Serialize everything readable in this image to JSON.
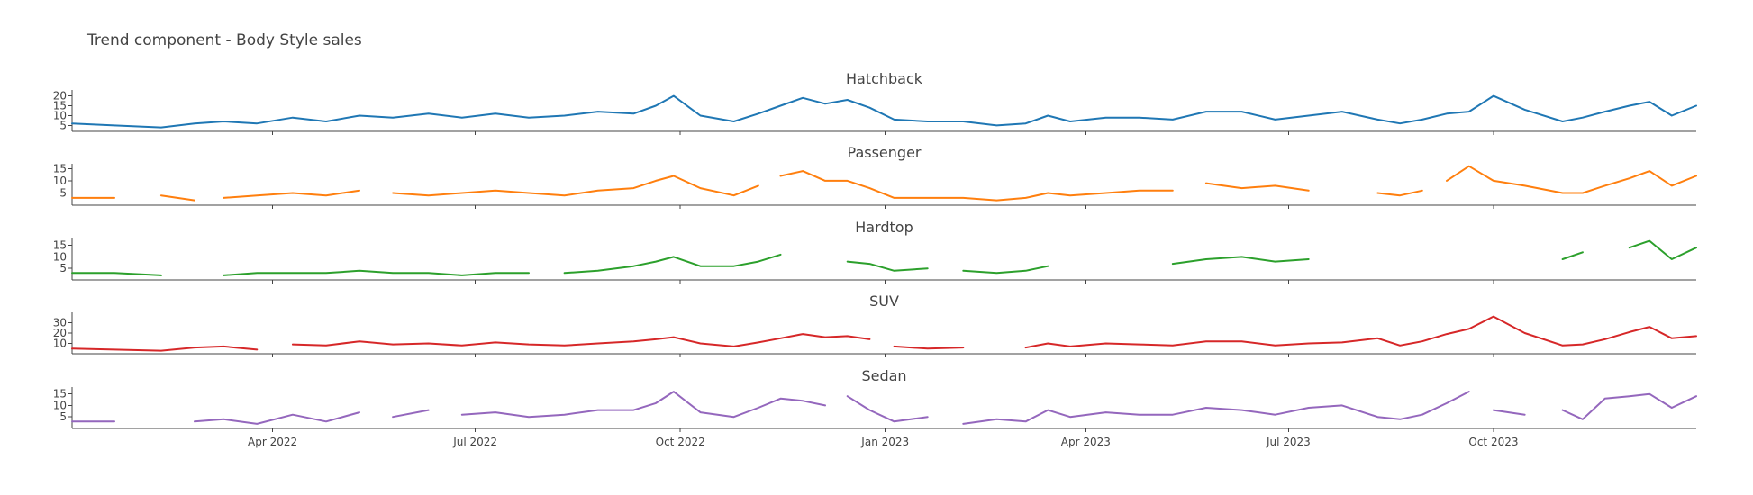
{
  "chart_data": {
    "type": "line",
    "title": "Trend component - Body Style sales",
    "x_range": [
      "2022-01-01",
      "2023-12-31"
    ],
    "x_ticks": [
      {
        "date": "2022-04-01",
        "label": "Apr 2022"
      },
      {
        "date": "2022-07-01",
        "label": "Jul 2022"
      },
      {
        "date": "2022-10-01",
        "label": "Oct 2022"
      },
      {
        "date": "2023-01-01",
        "label": "Jan 2023"
      },
      {
        "date": "2023-04-01",
        "label": "Apr 2023"
      },
      {
        "date": "2023-07-01",
        "label": "Jul 2023"
      },
      {
        "date": "2023-10-01",
        "label": "Oct 2023"
      }
    ],
    "grid": false,
    "legend": "none",
    "panels": [
      {
        "name": "Hatchback",
        "color": "#1f77b4",
        "ylim": [
          2,
          23
        ],
        "yticks": [
          5,
          10,
          15,
          20
        ],
        "x": [
          "2022-01-01",
          "2022-01-20",
          "2022-02-10",
          "2022-02-25",
          "2022-03-10",
          "2022-03-25",
          "2022-04-10",
          "2022-04-25",
          "2022-05-10",
          "2022-05-25",
          "2022-06-10",
          "2022-06-25",
          "2022-07-10",
          "2022-07-25",
          "2022-08-10",
          "2022-08-25",
          "2022-09-10",
          "2022-09-20",
          "2022-09-28",
          "2022-10-10",
          "2022-10-25",
          "2022-11-05",
          "2022-11-15",
          "2022-11-25",
          "2022-12-05",
          "2022-12-15",
          "2022-12-25",
          "2023-01-05",
          "2023-01-20",
          "2023-02-05",
          "2023-02-20",
          "2023-03-05",
          "2023-03-15",
          "2023-03-25",
          "2023-04-10",
          "2023-04-25",
          "2023-05-10",
          "2023-05-25",
          "2023-06-10",
          "2023-06-25",
          "2023-07-10",
          "2023-07-25",
          "2023-08-10",
          "2023-08-20",
          "2023-08-30",
          "2023-09-10",
          "2023-09-20",
          "2023-10-01",
          "2023-10-15",
          "2023-11-01",
          "2023-11-10",
          "2023-11-20",
          "2023-12-01",
          "2023-12-10",
          "2023-12-20",
          "2023-12-31"
        ],
        "y": [
          6,
          5,
          4,
          6,
          7,
          6,
          9,
          7,
          10,
          9,
          11,
          9,
          11,
          9,
          10,
          12,
          11,
          15,
          20,
          10,
          7,
          11,
          15,
          19,
          16,
          18,
          14,
          8,
          7,
          7,
          5,
          6,
          10,
          7,
          9,
          9,
          8,
          12,
          12,
          8,
          10,
          12,
          8,
          6,
          8,
          11,
          12,
          20,
          13,
          7,
          9,
          12,
          15,
          17,
          10,
          15
        ],
        "gaps": []
      },
      {
        "name": "Passenger",
        "color": "#ff7f0e",
        "ylim": [
          0,
          17
        ],
        "yticks": [
          5,
          10,
          15
        ],
        "x": [
          "2022-01-01",
          "2022-01-20",
          "2022-02-10",
          "2022-02-25",
          "2022-03-10",
          "2022-03-25",
          "2022-04-10",
          "2022-04-25",
          "2022-05-10",
          "2022-05-25",
          "2022-06-10",
          "2022-06-25",
          "2022-07-10",
          "2022-07-25",
          "2022-08-10",
          "2022-08-25",
          "2022-09-10",
          "2022-09-20",
          "2022-09-28",
          "2022-10-10",
          "2022-10-25",
          "2022-11-05",
          "2022-11-15",
          "2022-11-25",
          "2022-12-05",
          "2022-12-15",
          "2022-12-25",
          "2023-01-05",
          "2023-01-20",
          "2023-02-05",
          "2023-02-20",
          "2023-03-05",
          "2023-03-15",
          "2023-03-25",
          "2023-04-10",
          "2023-04-25",
          "2023-05-10",
          "2023-05-25",
          "2023-06-10",
          "2023-06-25",
          "2023-07-10",
          "2023-07-25",
          "2023-08-10",
          "2023-08-20",
          "2023-08-30",
          "2023-09-10",
          "2023-09-20",
          "2023-10-01",
          "2023-10-15",
          "2023-11-01",
          "2023-11-10",
          "2023-11-20",
          "2023-12-01",
          "2023-12-10",
          "2023-12-20",
          "2023-12-31"
        ],
        "y": [
          3,
          3,
          4,
          2,
          3,
          4,
          5,
          4,
          6,
          5,
          4,
          5,
          6,
          5,
          4,
          6,
          7,
          10,
          12,
          7,
          4,
          8,
          12,
          14,
          10,
          10,
          7,
          3,
          3,
          3,
          2,
          3,
          5,
          4,
          5,
          6,
          6,
          9,
          7,
          8,
          6,
          8,
          5,
          4,
          6,
          10,
          16,
          10,
          8,
          5,
          5,
          8,
          11,
          14,
          8,
          12
        ],
        "gaps": [
          [
            "2022-01-25",
            "2022-02-05"
          ],
          [
            "2022-03-01",
            "2022-03-08"
          ],
          [
            "2022-05-15",
            "2022-05-22"
          ],
          [
            "2022-11-08",
            "2022-11-12"
          ],
          [
            "2023-05-15",
            "2023-05-20"
          ],
          [
            "2023-07-20",
            "2023-07-26"
          ],
          [
            "2023-09-01",
            "2023-09-05"
          ]
        ]
      },
      {
        "name": "Hardtop",
        "color": "#2ca02c",
        "ylim": [
          0,
          18
        ],
        "yticks": [
          5,
          10,
          15
        ],
        "x": [
          "2022-01-01",
          "2022-01-20",
          "2022-02-10",
          "2022-02-25",
          "2022-03-10",
          "2022-03-25",
          "2022-04-10",
          "2022-04-25",
          "2022-05-10",
          "2022-05-25",
          "2022-06-10",
          "2022-06-25",
          "2022-07-10",
          "2022-07-25",
          "2022-08-10",
          "2022-08-25",
          "2022-09-10",
          "2022-09-20",
          "2022-09-28",
          "2022-10-10",
          "2022-10-25",
          "2022-11-05",
          "2022-11-15",
          "2022-11-25",
          "2022-12-05",
          "2022-12-15",
          "2022-12-25",
          "2023-01-05",
          "2023-01-20",
          "2023-02-05",
          "2023-02-20",
          "2023-03-05",
          "2023-03-15",
          "2023-03-25",
          "2023-04-10",
          "2023-04-25",
          "2023-05-10",
          "2023-05-25",
          "2023-06-10",
          "2023-06-25",
          "2023-07-10",
          "2023-07-25",
          "2023-08-10",
          "2023-08-20",
          "2023-08-30",
          "2023-09-10",
          "2023-09-20",
          "2023-10-01",
          "2023-10-15",
          "2023-11-01",
          "2023-11-10",
          "2023-11-20",
          "2023-12-01",
          "2023-12-10",
          "2023-12-20",
          "2023-12-31"
        ],
        "y": [
          3,
          3,
          2,
          2,
          2,
          3,
          3,
          3,
          4,
          3,
          3,
          2,
          3,
          3,
          3,
          4,
          6,
          8,
          10,
          6,
          6,
          8,
          11,
          10,
          9,
          8,
          7,
          4,
          5,
          4,
          3,
          4,
          6,
          7,
          8,
          9,
          7,
          9,
          10,
          8,
          9,
          10,
          9,
          7,
          8,
          9,
          10,
          6,
          7,
          9,
          12,
          11,
          14,
          17,
          9,
          14
        ],
        "gaps": [
          [
            "2022-02-20",
            "2022-03-05"
          ],
          [
            "2022-08-01",
            "2022-08-08"
          ],
          [
            "2022-11-20",
            "2022-11-25"
          ],
          [
            "2022-12-10",
            "2022-12-14"
          ],
          [
            "2023-01-22",
            "2023-02-02"
          ],
          [
            "2023-03-22",
            "2023-04-25"
          ],
          [
            "2023-07-25",
            "2023-10-01"
          ],
          [
            "2023-10-20",
            "2023-10-28"
          ],
          [
            "2023-11-15",
            "2023-11-24"
          ]
        ]
      },
      {
        "name": "SUV",
        "color": "#d62728",
        "ylim": [
          0,
          40
        ],
        "yticks": [
          10,
          20,
          30
        ],
        "x": [
          "2022-01-01",
          "2022-01-20",
          "2022-02-10",
          "2022-02-25",
          "2022-03-10",
          "2022-03-25",
          "2022-04-10",
          "2022-04-25",
          "2022-05-10",
          "2022-05-25",
          "2022-06-10",
          "2022-06-25",
          "2022-07-10",
          "2022-07-25",
          "2022-08-10",
          "2022-08-25",
          "2022-09-10",
          "2022-09-20",
          "2022-09-28",
          "2022-10-10",
          "2022-10-25",
          "2022-11-05",
          "2022-11-15",
          "2022-11-25",
          "2022-12-05",
          "2022-12-15",
          "2022-12-25",
          "2023-01-05",
          "2023-01-20",
          "2023-02-05",
          "2023-02-20",
          "2023-03-05",
          "2023-03-15",
          "2023-03-25",
          "2023-04-10",
          "2023-04-25",
          "2023-05-10",
          "2023-05-25",
          "2023-06-10",
          "2023-06-25",
          "2023-07-10",
          "2023-07-25",
          "2023-08-10",
          "2023-08-20",
          "2023-08-30",
          "2023-09-10",
          "2023-09-20",
          "2023-10-01",
          "2023-10-15",
          "2023-11-01",
          "2023-11-10",
          "2023-11-20",
          "2023-12-01",
          "2023-12-10",
          "2023-12-20",
          "2023-12-31"
        ],
        "y": [
          5,
          4,
          3,
          6,
          7,
          4,
          9,
          8,
          12,
          9,
          10,
          8,
          11,
          9,
          8,
          10,
          12,
          14,
          16,
          10,
          7,
          11,
          15,
          19,
          16,
          17,
          14,
          7,
          5,
          6,
          4,
          6,
          10,
          7,
          10,
          9,
          8,
          12,
          12,
          8,
          10,
          11,
          15,
          8,
          12,
          19,
          24,
          36,
          20,
          8,
          9,
          14,
          21,
          26,
          15,
          17
        ],
        "gaps": [
          [
            "2022-04-05",
            "2022-04-08"
          ],
          [
            "2022-12-30",
            "2023-01-03"
          ],
          [
            "2023-02-20",
            "2023-02-25"
          ]
        ]
      },
      {
        "name": "Sedan",
        "color": "#9467bd",
        "ylim": [
          0,
          18
        ],
        "yticks": [
          5,
          10,
          15
        ],
        "x": [
          "2022-01-01",
          "2022-01-20",
          "2022-02-10",
          "2022-02-25",
          "2022-03-10",
          "2022-03-25",
          "2022-04-10",
          "2022-04-25",
          "2022-05-10",
          "2022-05-25",
          "2022-06-10",
          "2022-06-25",
          "2022-07-10",
          "2022-07-25",
          "2022-08-10",
          "2022-08-25",
          "2022-09-10",
          "2022-09-20",
          "2022-09-28",
          "2022-10-10",
          "2022-10-25",
          "2022-11-05",
          "2022-11-15",
          "2022-11-25",
          "2022-12-05",
          "2022-12-15",
          "2022-12-25",
          "2023-01-05",
          "2023-01-20",
          "2023-02-05",
          "2023-02-20",
          "2023-03-05",
          "2023-03-15",
          "2023-03-25",
          "2023-04-10",
          "2023-04-25",
          "2023-05-10",
          "2023-05-25",
          "2023-06-10",
          "2023-06-25",
          "2023-07-10",
          "2023-07-25",
          "2023-08-10",
          "2023-08-20",
          "2023-08-30",
          "2023-09-10",
          "2023-09-20",
          "2023-10-01",
          "2023-10-15",
          "2023-11-01",
          "2023-11-10",
          "2023-11-20",
          "2023-12-01",
          "2023-12-10",
          "2023-12-20",
          "2023-12-31"
        ],
        "y": [
          3,
          3,
          2,
          3,
          4,
          2,
          6,
          3,
          7,
          5,
          8,
          6,
          7,
          5,
          6,
          8,
          8,
          11,
          16,
          7,
          5,
          9,
          13,
          12,
          10,
          14,
          8,
          3,
          5,
          2,
          4,
          3,
          8,
          5,
          7,
          6,
          6,
          9,
          8,
          6,
          9,
          10,
          5,
          4,
          6,
          11,
          16,
          8,
          6,
          8,
          4,
          13,
          14,
          15,
          9,
          14
        ],
        "gaps": [
          [
            "2022-02-05",
            "2022-02-12"
          ],
          [
            "2022-05-20",
            "2022-05-24"
          ],
          [
            "2022-06-20",
            "2022-06-24"
          ],
          [
            "2022-12-10",
            "2022-12-14"
          ],
          [
            "2023-01-25",
            "2023-01-30"
          ],
          [
            "2023-09-22",
            "2023-09-27"
          ],
          [
            "2023-10-25",
            "2023-10-30"
          ]
        ]
      }
    ]
  }
}
